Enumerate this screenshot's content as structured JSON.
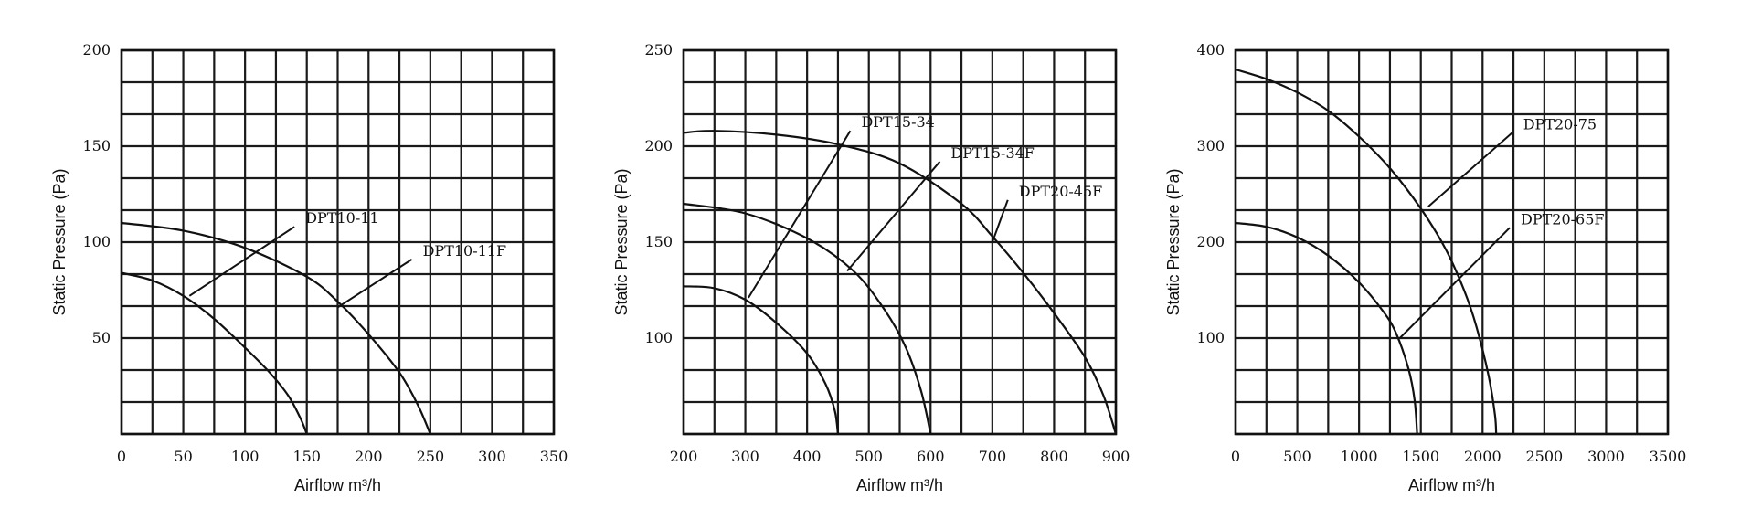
{
  "chart_data": [
    {
      "type": "line",
      "xlabel": "Airflow m³/h",
      "ylabel": "Static Pressure (Pa)",
      "xlim": [
        0,
        350
      ],
      "ylim": [
        0,
        200
      ],
      "x_ticks": [
        0,
        50,
        100,
        150,
        200,
        250,
        300,
        350
      ],
      "y_ticks": [
        50,
        100,
        150,
        200
      ],
      "x_grid_step": 25,
      "y_grid_step": 16.667,
      "grid": true,
      "series": [
        {
          "name": "DPT10-11",
          "x": [
            0,
            25,
            50,
            75,
            100,
            120,
            135,
            145,
            150
          ],
          "y": [
            84,
            80,
            72,
            60,
            45,
            32,
            20,
            8,
            0
          ]
        },
        {
          "name": "DPT10-11F",
          "x": [
            0,
            50,
            100,
            150,
            175,
            200,
            225,
            240,
            250
          ],
          "y": [
            110,
            106,
            97,
            82,
            69,
            52,
            32,
            15,
            0
          ]
        }
      ],
      "annotations": [
        {
          "text": "DPT10-11",
          "anchor": [
            55,
            72
          ],
          "label_at": [
            140,
            108
          ]
        },
        {
          "text": "DPT10-11F",
          "anchor": [
            175,
            66
          ],
          "label_at": [
            235,
            91
          ]
        }
      ]
    },
    {
      "type": "line",
      "xlabel": "Airflow m³/h",
      "ylabel": "Static Pressure (Pa)",
      "xlim": [
        200,
        900
      ],
      "ylim": [
        50,
        250
      ],
      "x_ticks": [
        200,
        300,
        400,
        500,
        600,
        700,
        800,
        900
      ],
      "y_ticks": [
        100,
        150,
        200,
        250
      ],
      "x_grid_step": 50,
      "y_grid_step": 16.667,
      "grid": true,
      "series": [
        {
          "name": "DPT15-34",
          "x": [
            200,
            250,
            300,
            350,
            400,
            430,
            445,
            450
          ],
          "y": [
            127,
            126,
            120,
            108,
            92,
            76,
            62,
            50
          ]
        },
        {
          "name": "DPT15-34F",
          "x": [
            200,
            300,
            400,
            475,
            525,
            560,
            585,
            600
          ],
          "y": [
            170,
            165,
            152,
            135,
            115,
            95,
            72,
            50
          ]
        },
        {
          "name": "DPT20-45F",
          "x": [
            200,
            250,
            350,
            450,
            550,
            650,
            700,
            750,
            800,
            850,
            880,
            900
          ],
          "y": [
            207,
            208,
            206,
            201,
            191,
            170,
            153,
            134,
            113,
            90,
            70,
            50
          ]
        }
      ],
      "annotations": [
        {
          "text": "DPT15-34",
          "anchor": [
            305,
            121
          ],
          "label_at": [
            470,
            208
          ]
        },
        {
          "text": "DPT15-34F",
          "anchor": [
            465,
            135
          ],
          "label_at": [
            615,
            192
          ]
        },
        {
          "text": "DPT20-45F",
          "anchor": [
            700,
            150
          ],
          "label_at": [
            725,
            172
          ]
        }
      ]
    },
    {
      "type": "line",
      "xlabel": "Airflow m³/h",
      "ylabel": "Static Pressure (Pa)",
      "xlim": [
        0,
        3500
      ],
      "ylim": [
        0,
        400
      ],
      "x_ticks": [
        0,
        500,
        1000,
        1500,
        2000,
        2500,
        3000,
        3500
      ],
      "y_ticks": [
        100,
        200,
        300,
        400
      ],
      "x_grid_step": 250,
      "y_grid_step": 33.333,
      "grid": true,
      "series": [
        {
          "name": "DPT20-75",
          "x": [
            0,
            250,
            500,
            750,
            1000,
            1250,
            1500,
            1700,
            1850,
            1950,
            2050,
            2100,
            2110
          ],
          "y": [
            380,
            370,
            356,
            337,
            310,
            277,
            235,
            193,
            150,
            112,
            60,
            20,
            0
          ]
        },
        {
          "name": "DPT20-65F",
          "x": [
            0,
            250,
            500,
            750,
            1000,
            1200,
            1300,
            1400,
            1450,
            1470
          ],
          "y": [
            220,
            216,
            205,
            186,
            158,
            127,
            105,
            68,
            35,
            0
          ]
        }
      ],
      "annotations": [
        {
          "text": "DPT20-75",
          "anchor": [
            1560,
            237
          ],
          "label_at": [
            2240,
            314
          ]
        },
        {
          "text": "DPT20-65F",
          "anchor": [
            1330,
            100
          ],
          "label_at": [
            2220,
            215
          ]
        }
      ]
    }
  ]
}
